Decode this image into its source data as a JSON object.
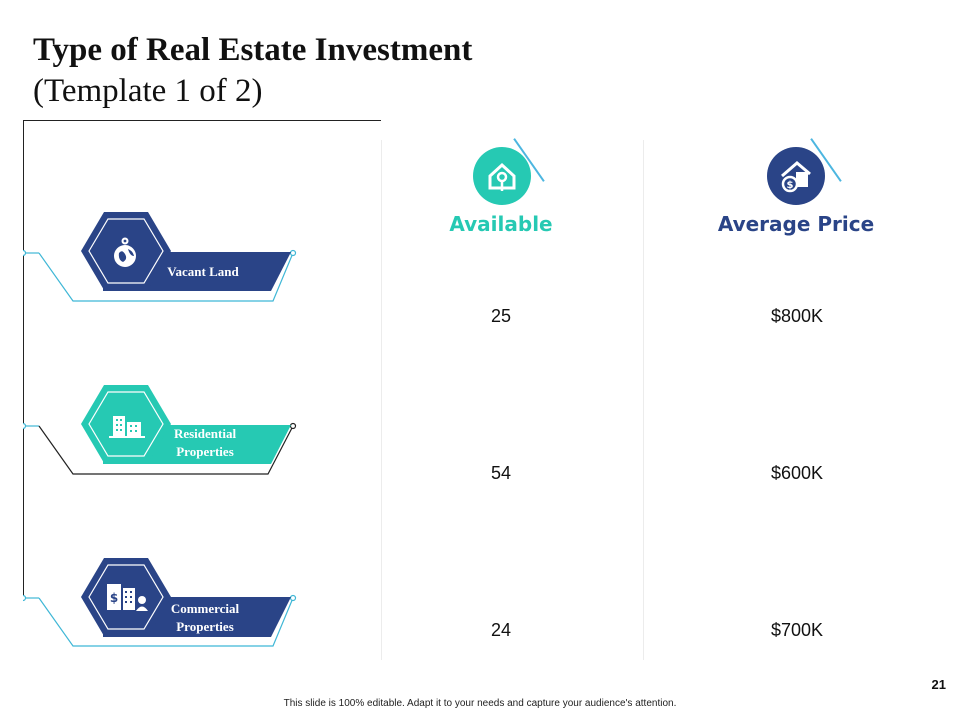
{
  "slide": {
    "title_bold": "Type of  Real Estate Investment",
    "title_rest": "(Template 1 of  2)",
    "page_number": "21",
    "footer": "This slide is 100% editable.  Adapt it to your needs and capture your audience's attention."
  },
  "colors": {
    "navy": "#2a4487",
    "teal": "#26c9b3",
    "line": "#3fb7d6"
  },
  "columns": [
    {
      "label": "Available",
      "icon": "home-key-icon",
      "color": "#26c9b3"
    },
    {
      "label": "Average Price",
      "icon": "home-dollar-icon",
      "color": "#2a4487"
    }
  ],
  "rows": [
    {
      "name_line1": "Vacant Land",
      "name_line2": "",
      "icon": "globe-location-icon",
      "color": "navy",
      "available": "25",
      "average_price": "$800K"
    },
    {
      "name_line1": "Residential",
      "name_line2": "Properties",
      "icon": "buildings-icon",
      "color": "teal",
      "available": "54",
      "average_price": "$600K"
    },
    {
      "name_line1": "Commercial",
      "name_line2": "Properties",
      "icon": "office-dollar-icon",
      "color": "navy",
      "available": "24",
      "average_price": "$700K"
    }
  ]
}
